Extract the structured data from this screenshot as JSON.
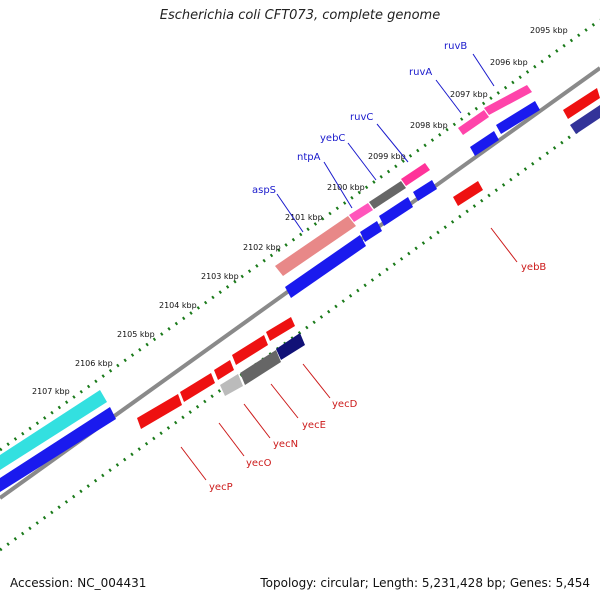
{
  "title": "Escherichia coli CFT073, complete genome",
  "footer": {
    "accession": "Accession: NC_004431",
    "summary": "Topology: circular; Length: 5,231,428 bp; Genes: 5,454"
  },
  "ticks": [
    "2095 kbp",
    "2096 kbp",
    "2097 kbp",
    "2098 kbp",
    "2099 kbp",
    "2100 kbp",
    "2101 kbp",
    "2102 kbp",
    "2103 kbp",
    "2104 kbp",
    "2105 kbp",
    "2106 kbp",
    "2107 kbp"
  ],
  "genes_top": [
    "ruvB",
    "ruvA",
    "ruvC",
    "yebC",
    "ntpA",
    "aspS"
  ],
  "genes_bottom": [
    "yebB",
    "yecD",
    "yecE",
    "yecN",
    "yecO",
    "yecP"
  ],
  "colors": {
    "label_top": "#1a1acc",
    "label_bottom": "#cc1a1a",
    "tick_green": "#1a7a1a",
    "backbone": "#8a8a8a"
  }
}
